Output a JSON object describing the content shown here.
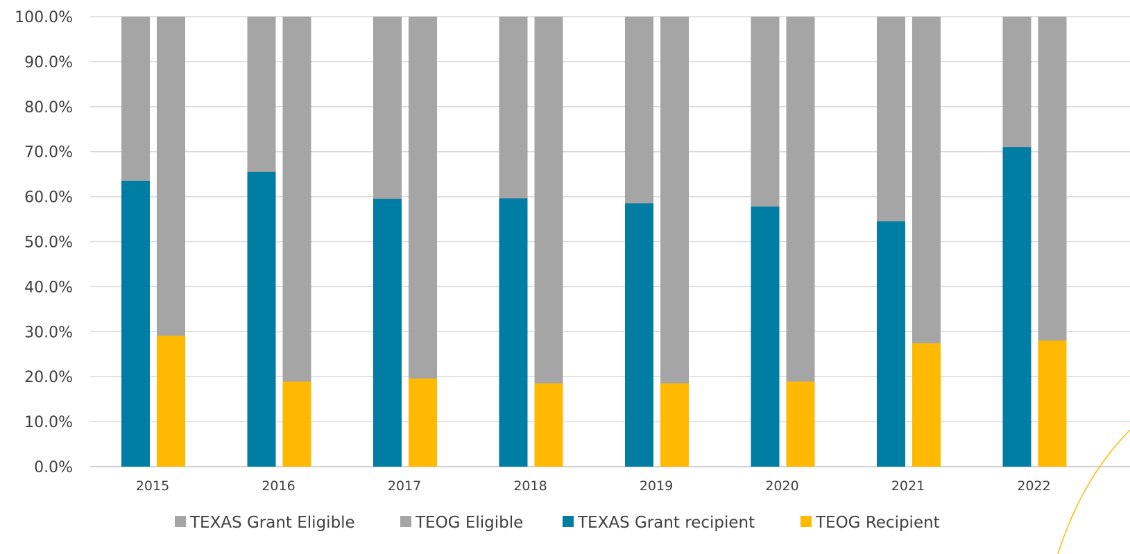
{
  "chart_data": {
    "type": "bar",
    "stacked_overlay": true,
    "categories": [
      "2015",
      "2016",
      "2017",
      "2018",
      "2019",
      "2020",
      "2021",
      "2022"
    ],
    "ylim": [
      0,
      100
    ],
    "y_ticks": [
      "0.0%",
      "10.0%",
      "20.0%",
      "30.0%",
      "40.0%",
      "50.0%",
      "60.0%",
      "70.0%",
      "80.0%",
      "90.0%",
      "100.0%"
    ],
    "grid": true,
    "legend_position": "bottom",
    "series": [
      {
        "name": "TEXAS Grant Eligible",
        "color": "#A5A5A5",
        "values": [
          100,
          100,
          100,
          100,
          100,
          100,
          100,
          100
        ]
      },
      {
        "name": "TEOG Eligible",
        "color": "#A5A5A5",
        "values": [
          100,
          100,
          100,
          100,
          100,
          100,
          100,
          100
        ]
      },
      {
        "name": "TEXAS Grant recipient",
        "color": "#007DA3",
        "values": [
          63.5,
          65.5,
          59.5,
          59.6,
          58.5,
          57.8,
          54.5,
          71.0
        ]
      },
      {
        "name": "TEOG Recipient",
        "color": "#FFB900",
        "values": [
          29.1,
          18.9,
          19.6,
          18.5,
          18.5,
          18.9,
          27.4,
          28.0
        ]
      }
    ]
  }
}
